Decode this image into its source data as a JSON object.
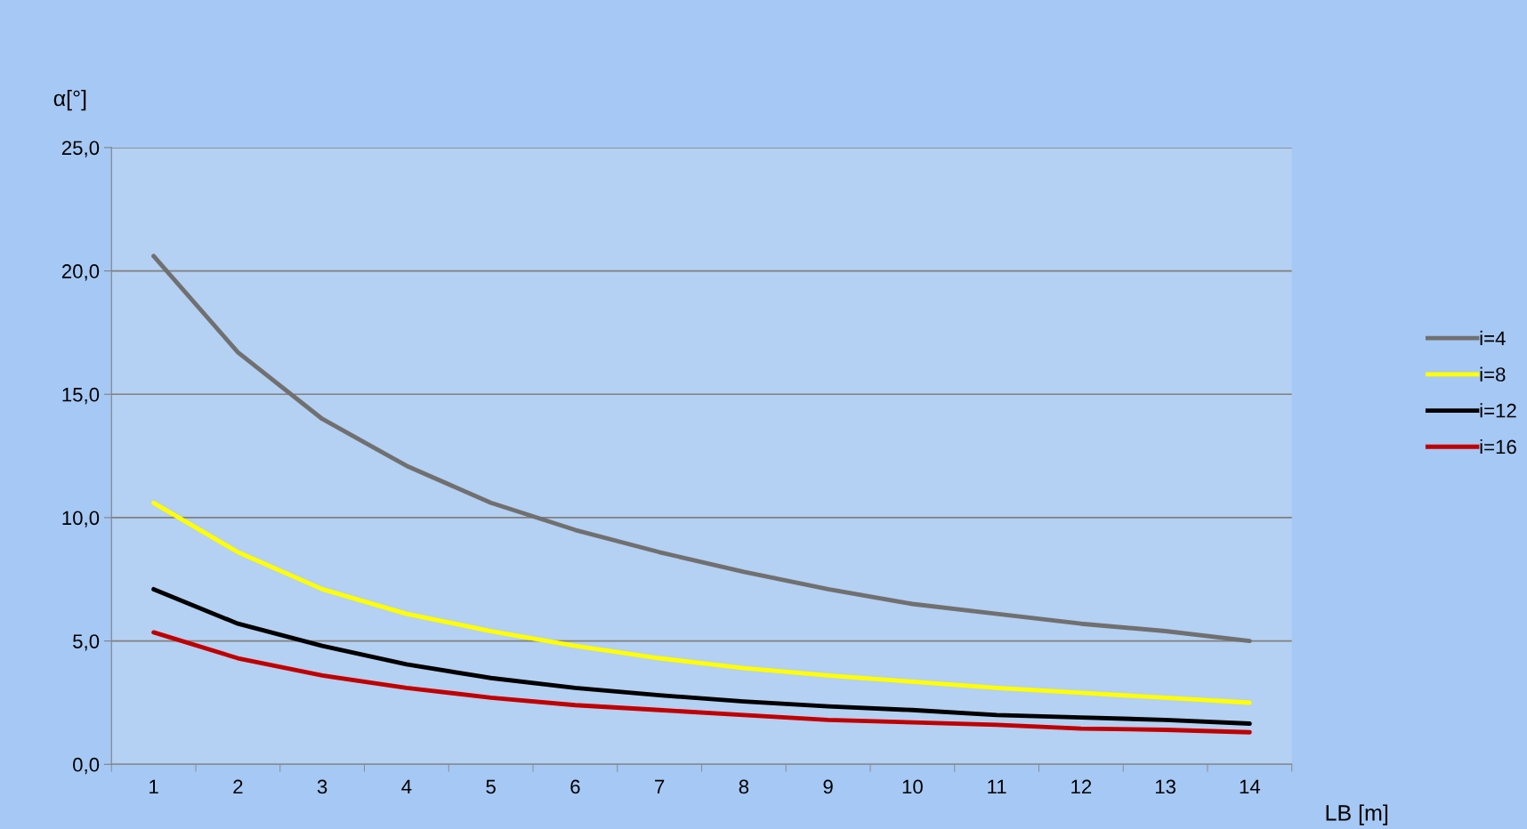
{
  "chart_data": {
    "type": "line",
    "xlabel": "LB [m]",
    "ylabel": "α[°]",
    "categories": [
      "1",
      "2",
      "3",
      "4",
      "5",
      "6",
      "7",
      "8",
      "9",
      "10",
      "11",
      "12",
      "13",
      "14"
    ],
    "ylim": [
      0,
      25
    ],
    "yticks": [
      {
        "value": 0,
        "label": "0,0"
      },
      {
        "value": 5,
        "label": "5,0"
      },
      {
        "value": 10,
        "label": "10,0"
      },
      {
        "value": 15,
        "label": "15,0"
      },
      {
        "value": 20,
        "label": "20,0"
      },
      {
        "value": 25,
        "label": "25,0"
      }
    ],
    "grid": "y",
    "legend": "right",
    "marker": "none",
    "line_style": "solid",
    "series": [
      {
        "name": "i=4",
        "color": "#707070",
        "values": [
          20.6,
          16.7,
          14.0,
          12.1,
          10.6,
          9.5,
          8.6,
          7.8,
          7.1,
          6.5,
          6.1,
          5.7,
          5.4,
          5.0
        ]
      },
      {
        "name": "i=8",
        "color": "#ffff00",
        "values": [
          10.6,
          8.6,
          7.1,
          6.1,
          5.4,
          4.8,
          4.3,
          3.9,
          3.6,
          3.35,
          3.1,
          2.9,
          2.7,
          2.5
        ]
      },
      {
        "name": "i=12",
        "color": "#000000",
        "values": [
          7.1,
          5.7,
          4.8,
          4.05,
          3.5,
          3.1,
          2.8,
          2.55,
          2.35,
          2.2,
          2.0,
          1.9,
          1.8,
          1.65
        ]
      },
      {
        "name": "i=16",
        "color": "#c00000",
        "values": [
          5.35,
          4.3,
          3.6,
          3.1,
          2.7,
          2.4,
          2.2,
          2.0,
          1.8,
          1.7,
          1.6,
          1.45,
          1.4,
          1.3
        ]
      }
    ]
  }
}
